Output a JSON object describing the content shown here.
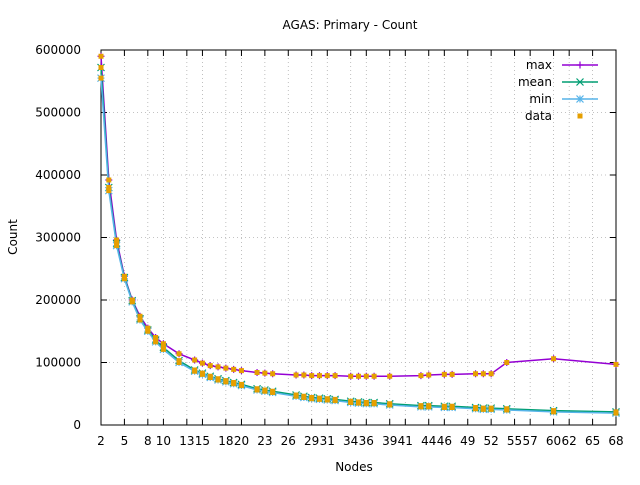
{
  "chart_data": {
    "type": "line",
    "title": "AGAS: Primary - Count",
    "xlabel": "Nodes",
    "ylabel": "Count",
    "xlim": [
      2,
      68
    ],
    "ylim": [
      0,
      600000
    ],
    "xticks": [
      2,
      5,
      8,
      10,
      13,
      15,
      18,
      20,
      23,
      26,
      29,
      31,
      34,
      36,
      39,
      41,
      44,
      46,
      49,
      52,
      55,
      57,
      60,
      62,
      65,
      68
    ],
    "xtick_labels": [
      "2",
      "5",
      "8",
      "10",
      "13",
      "15",
      "18",
      "20",
      "23",
      "26",
      "29",
      "31",
      "34",
      "36",
      "39",
      "41",
      "44",
      "46",
      "49",
      "52",
      "55",
      "57",
      "60",
      "62",
      "65",
      "68"
    ],
    "yticks": [
      0,
      100000,
      200000,
      300000,
      400000,
      500000,
      600000
    ],
    "ytick_labels": [
      "0",
      "100000",
      "200000",
      "300000",
      "400000",
      "500000",
      "600000"
    ],
    "grid": true,
    "legend_position": "top-right",
    "x": [
      2,
      3,
      4,
      5,
      6,
      7,
      8,
      9,
      10,
      12,
      14,
      15,
      16,
      17,
      18,
      19,
      20,
      22,
      23,
      24,
      27,
      28,
      29,
      30,
      31,
      32,
      34,
      35,
      36,
      37,
      39,
      43,
      44,
      46,
      47,
      50,
      51,
      52,
      54,
      60,
      68
    ],
    "series": [
      {
        "name": "max",
        "color": "#9400d3",
        "marker": "plus",
        "values": [
          590000,
          392000,
          296000,
          238000,
          200000,
          174000,
          155000,
          140000,
          130000,
          114000,
          104000,
          99000,
          95000,
          93000,
          91000,
          89000,
          87000,
          84000,
          83000,
          82000,
          80000,
          80000,
          79000,
          79000,
          79000,
          79000,
          78000,
          78000,
          78000,
          78000,
          78000,
          79000,
          80000,
          81000,
          81000,
          82000,
          82000,
          82000,
          100000,
          106000,
          97000
        ]
      },
      {
        "name": "mean",
        "color": "#009e73",
        "marker": "cross",
        "values": [
          572000,
          380000,
          290000,
          236000,
          199000,
          170000,
          152000,
          136000,
          124000,
          103000,
          88000,
          83000,
          78000,
          74000,
          71000,
          68000,
          65000,
          58000,
          56000,
          54000,
          48000,
          46000,
          44000,
          43000,
          42000,
          41000,
          38000,
          37000,
          36000,
          36000,
          34000,
          31000,
          31000,
          30000,
          30000,
          28000,
          27000,
          27000,
          26000,
          23000,
          21000
        ]
      },
      {
        "name": "min",
        "color": "#56b4e9",
        "marker": "star",
        "values": [
          555000,
          375000,
          287000,
          234000,
          197000,
          168000,
          150000,
          133000,
          121000,
          100000,
          86000,
          81000,
          76000,
          72000,
          69000,
          66000,
          63000,
          56000,
          54000,
          52000,
          46000,
          44000,
          42000,
          41000,
          40000,
          39000,
          36000,
          35000,
          34000,
          34000,
          32000,
          29000,
          29000,
          28000,
          28000,
          26000,
          25000,
          25000,
          24000,
          21000,
          19000
        ]
      }
    ],
    "data_points": {
      "name": "data",
      "color": "#e69f00",
      "marker": "square"
    }
  }
}
